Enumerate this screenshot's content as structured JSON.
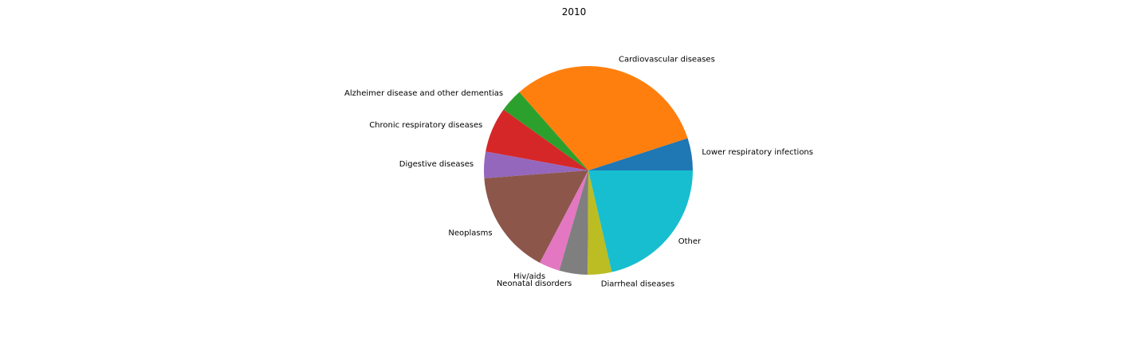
{
  "chart_data": {
    "type": "pie",
    "title": "2010",
    "start_angle_deg": 0,
    "direction": "counterclockwise",
    "slices": [
      {
        "label": "Lower respiratory infections",
        "value": 5.0,
        "color": "#1f77b4"
      },
      {
        "label": "Cardiovascular diseases",
        "value": 31.5,
        "color": "#ff7f0e"
      },
      {
        "label": "Alzheimer disease and other dementias",
        "value": 3.6,
        "color": "#2ca02c"
      },
      {
        "label": "Chronic respiratory diseases",
        "value": 7.0,
        "color": "#d62728"
      },
      {
        "label": "Digestive diseases",
        "value": 4.1,
        "color": "#9467bd"
      },
      {
        "label": "Neoplasms",
        "value": 16.1,
        "color": "#8c564b"
      },
      {
        "label": "Hiv/aids",
        "value": 3.2,
        "color": "#e377c2"
      },
      {
        "label": "Neonatal disorders",
        "value": 4.4,
        "color": "#7f7f7f"
      },
      {
        "label": "Diarrheal diseases",
        "value": 3.7,
        "color": "#bcbd22"
      },
      {
        "label": "Other",
        "value": 21.4,
        "color": "#17becf"
      }
    ]
  }
}
